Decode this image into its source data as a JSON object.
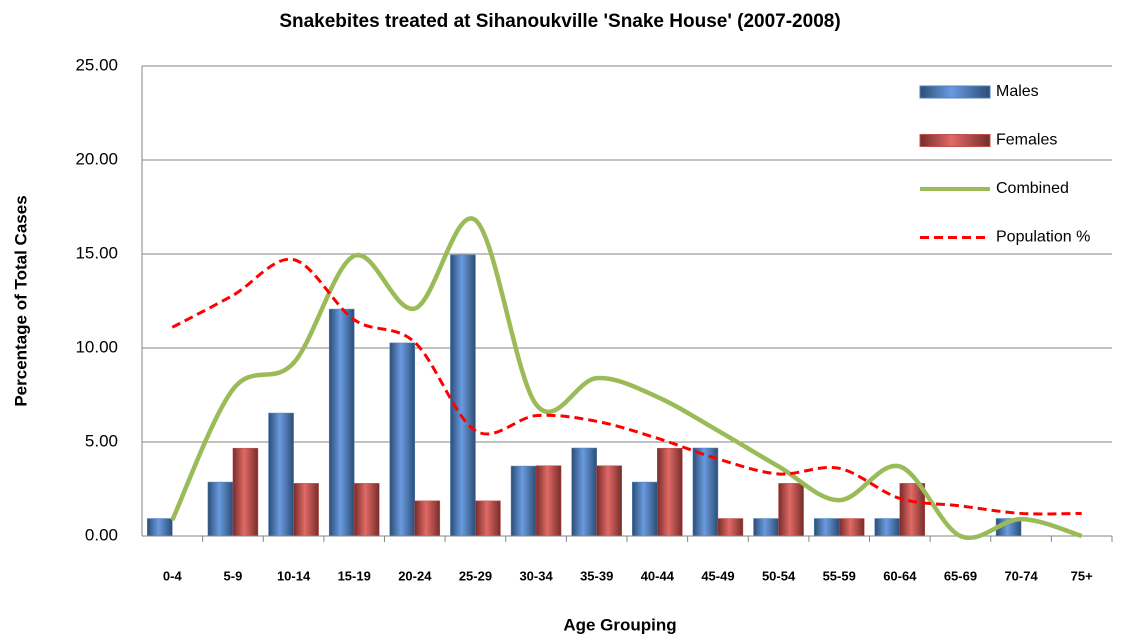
{
  "chart_data": {
    "type": "bar",
    "title": "Snakebites treated at Sihanoukville 'Snake House' (2007-2008)",
    "x_label": "Age Grouping",
    "y_label": "Percentage of Total Cases",
    "categories": [
      "0-4",
      "5-9",
      "10-14",
      "15-19",
      "20-24",
      "25-29",
      "30-34",
      "35-39",
      "40-44",
      "45-49",
      "50-54",
      "55-59",
      "60-64",
      "65-69",
      "70-74",
      "75+"
    ],
    "series": [
      {
        "name": "Males",
        "type": "bar",
        "color": "#4f81bd",
        "values": [
          0.93,
          2.87,
          6.54,
          12.07,
          10.27,
          14.95,
          3.72,
          4.68,
          2.87,
          4.68,
          0.93,
          0.93,
          0.93,
          0,
          0.93,
          0
        ]
      },
      {
        "name": "Females",
        "type": "bar",
        "color": "#c0504d",
        "values": [
          0,
          4.67,
          2.8,
          2.8,
          1.87,
          1.87,
          3.74,
          3.74,
          4.67,
          0.93,
          2.8,
          0.93,
          2.8,
          0,
          0,
          0
        ]
      },
      {
        "name": "Combined",
        "type": "line",
        "color": "#9bbb59",
        "values": [
          0.85,
          7.8,
          9.2,
          14.9,
          12.1,
          16.8,
          7.0,
          8.4,
          7.4,
          5.6,
          3.7,
          1.9,
          3.7,
          0,
          0.9,
          0
        ]
      },
      {
        "name": "Population %",
        "type": "line",
        "dashed": true,
        "color": "#ff0000",
        "values": [
          11.1,
          12.8,
          14.7,
          11.5,
          10.3,
          5.6,
          6.4,
          6.1,
          5.2,
          4.1,
          3.3,
          3.6,
          2.0,
          1.6,
          1.2,
          1.2
        ]
      }
    ],
    "ylim": [
      0,
      25
    ],
    "yticks": [
      {
        "value": 0,
        "label": "0.00"
      },
      {
        "value": 5,
        "label": "5.00"
      },
      {
        "value": 10,
        "label": "10.00"
      },
      {
        "value": 15,
        "label": "15.00"
      },
      {
        "value": 20,
        "label": "20.00"
      },
      {
        "value": 25,
        "label": "25.00"
      }
    ],
    "grid": true,
    "legend": "right"
  }
}
